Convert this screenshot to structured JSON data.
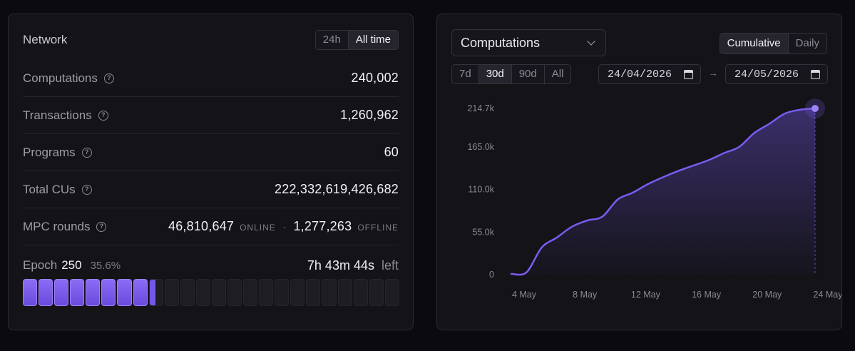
{
  "network": {
    "title": "Network",
    "range_options": [
      {
        "label": "24h",
        "active": false
      },
      {
        "label": "All time",
        "active": true
      }
    ],
    "stats": [
      {
        "label": "Computations",
        "value": "240,002"
      },
      {
        "label": "Transactions",
        "value": "1,260,962"
      },
      {
        "label": "Programs",
        "value": "60"
      },
      {
        "label": "Total CUs",
        "value": "222,332,619,426,682"
      }
    ],
    "mpc": {
      "label": "MPC rounds",
      "online_value": "46,810,647",
      "online_tag": "ONLINE",
      "separator": "·",
      "offline_value": "1,277,263",
      "offline_tag": "OFFLINE"
    },
    "epoch": {
      "label": "Epoch",
      "number": "250",
      "percent_text": "35.6%",
      "progress": 0.356,
      "segments": 24,
      "time_left": "7h 43m 44s",
      "left_word": "left"
    }
  },
  "chart_panel": {
    "metric_dropdown": "Computations",
    "mode_options": [
      {
        "label": "Cumulative",
        "active": true
      },
      {
        "label": "Daily",
        "active": false
      }
    ],
    "range_options": [
      {
        "label": "7d",
        "active": false
      },
      {
        "label": "30d",
        "active": true
      },
      {
        "label": "90d",
        "active": false
      },
      {
        "label": "All",
        "active": false
      }
    ],
    "date_start": "24/04/2026",
    "date_end": "24/05/2026",
    "date_arrow": "→"
  },
  "colors": {
    "accent": "#7b5cf0",
    "accent_light": "#9b82f7",
    "panel_bg": "#141318",
    "page_bg": "#0b0a10"
  },
  "chart_data": {
    "type": "area",
    "title": "",
    "xlabel": "",
    "ylabel": "",
    "x_ticks": [
      "4 May",
      "8 May",
      "12 May",
      "16 May",
      "20 May",
      "24 May"
    ],
    "y_ticks": [
      "0",
      "55.0k",
      "110.0k",
      "165.0k",
      "214.7k"
    ],
    "ylim": [
      0,
      214700
    ],
    "grid": false,
    "x": [
      "4 May",
      "5 May",
      "6 May",
      "7 May",
      "8 May",
      "9 May",
      "10 May",
      "11 May",
      "12 May",
      "13 May",
      "14 May",
      "15 May",
      "16 May",
      "17 May",
      "18 May",
      "19 May",
      "20 May",
      "21 May",
      "22 May",
      "23 May",
      "24 May"
    ],
    "series": [
      {
        "values": [
          1000,
          3000,
          35000,
          48000,
          62000,
          70000,
          75000,
          97000,
          106000,
          117000,
          126000,
          134000,
          141000,
          148000,
          157000,
          165000,
          183000,
          195000,
          208000,
          213000,
          214700
        ]
      }
    ],
    "highlight_last_point": true
  }
}
